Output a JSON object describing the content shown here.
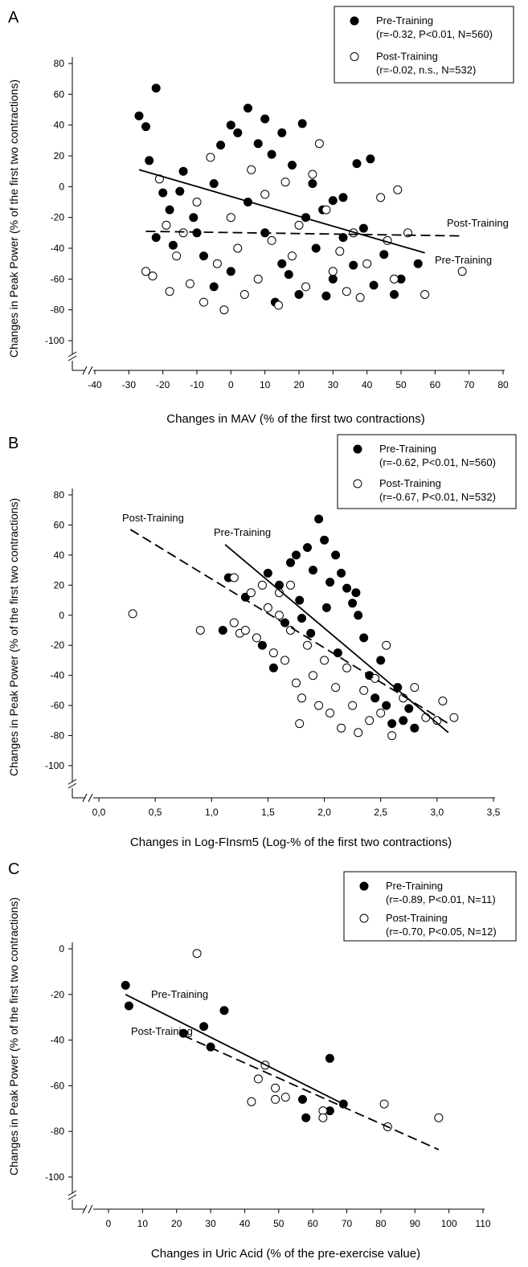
{
  "chart_data": [
    {
      "type": "scatter",
      "panel_label": "A",
      "xlabel": "Changes in MAV (% of the first two contractions)",
      "ylabel": "Changes in Peak Power (% of the first two contractions)",
      "xlim": [
        -40,
        80
      ],
      "ylim": [
        -100,
        80
      ],
      "x_ticks": [
        "-40",
        "-30",
        "-20",
        "-10",
        "0",
        "10",
        "20",
        "30",
        "40",
        "50",
        "60",
        "70",
        "80"
      ],
      "y_ticks": [
        "80",
        "60",
        "40",
        "20",
        "0",
        "-20",
        "-40",
        "-60",
        "-80",
        "-100"
      ],
      "legend_position": "top-right",
      "series": [
        {
          "name": "Pre-Training",
          "stats": "(r=-0.32, P<0.01, N=560)",
          "marker": "filled-circle",
          "n_points": 560,
          "regression": {
            "x1": -27,
            "y1": 11,
            "x2": 57,
            "y2": -43,
            "style": "solid",
            "label": "Pre-Training"
          },
          "points": [
            [
              -27,
              46
            ],
            [
              -25,
              39
            ],
            [
              -22,
              64
            ],
            [
              -24,
              17
            ],
            [
              -20,
              -4
            ],
            [
              -18,
              -15
            ],
            [
              -22,
              -33
            ],
            [
              -17,
              -38
            ],
            [
              -15,
              -3
            ],
            [
              -14,
              10
            ],
            [
              -11,
              -20
            ],
            [
              -8,
              -45
            ],
            [
              -5,
              2
            ],
            [
              -3,
              27
            ],
            [
              0,
              40
            ],
            [
              2,
              35
            ],
            [
              5,
              51
            ],
            [
              8,
              28
            ],
            [
              10,
              44
            ],
            [
              12,
              21
            ],
            [
              15,
              35
            ],
            [
              18,
              14
            ],
            [
              21,
              41
            ],
            [
              24,
              2
            ],
            [
              27,
              -15
            ],
            [
              30,
              -9
            ],
            [
              33,
              -33
            ],
            [
              36,
              -51
            ],
            [
              39,
              -27
            ],
            [
              42,
              -64
            ],
            [
              45,
              -44
            ],
            [
              48,
              -70
            ],
            [
              50,
              -60
            ],
            [
              55,
              -50
            ],
            [
              5,
              -10
            ],
            [
              10,
              -30
            ],
            [
              15,
              -50
            ],
            [
              20,
              -70
            ],
            [
              25,
              -40
            ],
            [
              30,
              -60
            ],
            [
              0,
              -55
            ],
            [
              -5,
              -65
            ],
            [
              -10,
              -30
            ],
            [
              13,
              -75
            ],
            [
              17,
              -57
            ],
            [
              22,
              -20
            ],
            [
              28,
              -71
            ],
            [
              33,
              -7
            ],
            [
              37,
              15
            ],
            [
              41,
              18
            ]
          ]
        },
        {
          "name": "Post-Training",
          "stats": "(r=-0.02, n.s., N=532)",
          "marker": "open-circle",
          "n_points": 532,
          "regression": {
            "x1": -25,
            "y1": -29,
            "x2": 68,
            "y2": -32,
            "style": "dashed",
            "label": "Post-Training"
          },
          "points": [
            [
              -25,
              -55
            ],
            [
              -23,
              -58
            ],
            [
              -21,
              5
            ],
            [
              -19,
              -25
            ],
            [
              -18,
              -68
            ],
            [
              -16,
              -45
            ],
            [
              -14,
              -30
            ],
            [
              -12,
              -63
            ],
            [
              -10,
              -10
            ],
            [
              -8,
              -75
            ],
            [
              -6,
              19
            ],
            [
              -4,
              -50
            ],
            [
              -2,
              -80
            ],
            [
              0,
              -20
            ],
            [
              2,
              -40
            ],
            [
              4,
              -70
            ],
            [
              6,
              11
            ],
            [
              8,
              -60
            ],
            [
              10,
              -5
            ],
            [
              12,
              -35
            ],
            [
              14,
              -77
            ],
            [
              16,
              3
            ],
            [
              18,
              -45
            ],
            [
              20,
              -25
            ],
            [
              22,
              -65
            ],
            [
              24,
              8
            ],
            [
              26,
              28
            ],
            [
              28,
              -15
            ],
            [
              30,
              -55
            ],
            [
              32,
              -42
            ],
            [
              34,
              -68
            ],
            [
              36,
              -30
            ],
            [
              38,
              -72
            ],
            [
              40,
              -50
            ],
            [
              44,
              -7
            ],
            [
              46,
              -35
            ],
            [
              48,
              -60
            ],
            [
              49,
              -2
            ],
            [
              52,
              -30
            ],
            [
              57,
              -70
            ],
            [
              68,
              -55
            ]
          ]
        }
      ]
    },
    {
      "type": "scatter",
      "panel_label": "B",
      "xlabel": "Changes in Log-FInsm5 (Log-% of the first two contractions)",
      "ylabel": "Changes in Peak Power (% of the first two contractions)",
      "xlim": [
        -0.25,
        3.5
      ],
      "ylim": [
        -100,
        80
      ],
      "x_ticks": [
        "0,0",
        "0,5",
        "1,0",
        "1,5",
        "2,0",
        "2,5",
        "3,0",
        "3,5"
      ],
      "x_tick_values": [
        0,
        0.5,
        1.0,
        1.5,
        2.0,
        2.5,
        3.0,
        3.5
      ],
      "y_ticks": [
        "80",
        "60",
        "40",
        "20",
        "0",
        "-20",
        "-40",
        "-60",
        "-80",
        "-100"
      ],
      "legend_position": "top-right",
      "series": [
        {
          "name": "Pre-Training",
          "stats": "(r=-0.62, P<0.01, N=560)",
          "marker": "filled-circle",
          "n_points": 560,
          "regression": {
            "x1": 1.12,
            "y1": 47,
            "x2": 3.1,
            "y2": -78,
            "style": "solid",
            "label": "Pre-Training"
          },
          "points": [
            [
              1.15,
              25
            ],
            [
              1.1,
              -10
            ],
            [
              1.3,
              12
            ],
            [
              1.45,
              -20
            ],
            [
              1.5,
              28
            ],
            [
              1.55,
              -35
            ],
            [
              1.6,
              20
            ],
            [
              1.7,
              35
            ],
            [
              1.75,
              40
            ],
            [
              1.8,
              -2
            ],
            [
              1.85,
              45
            ],
            [
              1.9,
              30
            ],
            [
              1.95,
              64
            ],
            [
              2.0,
              50
            ],
            [
              2.05,
              22
            ],
            [
              2.1,
              40
            ],
            [
              2.15,
              28
            ],
            [
              2.2,
              18
            ],
            [
              2.25,
              8
            ],
            [
              2.3,
              0
            ],
            [
              2.35,
              -15
            ],
            [
              2.4,
              -40
            ],
            [
              2.45,
              -55
            ],
            [
              2.5,
              -30
            ],
            [
              2.55,
              -60
            ],
            [
              2.6,
              -72
            ],
            [
              2.65,
              -48
            ],
            [
              2.7,
              -70
            ],
            [
              2.75,
              -62
            ],
            [
              2.8,
              -75
            ],
            [
              1.65,
              -5
            ],
            [
              1.78,
              10
            ],
            [
              1.88,
              -12
            ],
            [
              2.02,
              5
            ],
            [
              2.12,
              -25
            ],
            [
              2.28,
              15
            ]
          ]
        },
        {
          "name": "Post-Training",
          "stats": "(r=-0.67, P<0.01, N=532)",
          "marker": "open-circle",
          "n_points": 532,
          "regression": {
            "x1": 0.28,
            "y1": 57,
            "x2": 3.1,
            "y2": -72,
            "style": "dashed",
            "label": "Post-Training"
          },
          "points": [
            [
              0.3,
              1
            ],
            [
              0.9,
              -10
            ],
            [
              1.2,
              25
            ],
            [
              1.2,
              -5
            ],
            [
              1.25,
              -12
            ],
            [
              1.3,
              -10
            ],
            [
              1.35,
              15
            ],
            [
              1.4,
              -15
            ],
            [
              1.45,
              20
            ],
            [
              1.5,
              5
            ],
            [
              1.55,
              -25
            ],
            [
              1.6,
              0
            ],
            [
              1.65,
              -30
            ],
            [
              1.7,
              -10
            ],
            [
              1.75,
              -45
            ],
            [
              1.78,
              -72
            ],
            [
              1.8,
              -55
            ],
            [
              1.85,
              -20
            ],
            [
              1.9,
              -40
            ],
            [
              1.95,
              -60
            ],
            [
              2.0,
              -30
            ],
            [
              2.05,
              -65
            ],
            [
              2.1,
              -48
            ],
            [
              2.15,
              -75
            ],
            [
              2.2,
              -35
            ],
            [
              2.25,
              -60
            ],
            [
              2.3,
              -78
            ],
            [
              2.35,
              -50
            ],
            [
              2.4,
              -70
            ],
            [
              2.45,
              -42
            ],
            [
              2.5,
              -65
            ],
            [
              2.6,
              -80
            ],
            [
              2.7,
              -55
            ],
            [
              2.8,
              -48
            ],
            [
              2.9,
              -68
            ],
            [
              3.0,
              -70
            ],
            [
              3.05,
              -57
            ],
            [
              3.15,
              -68
            ],
            [
              2.55,
              -20
            ],
            [
              1.6,
              15
            ],
            [
              1.7,
              20
            ]
          ]
        }
      ]
    },
    {
      "type": "scatter",
      "panel_label": "C",
      "xlabel": "Changes in Uric Acid (% of the pre-exercise value)",
      "ylabel": "Changes in Peak Power (% of the first two contractions)",
      "xlim": [
        -10,
        110
      ],
      "ylim": [
        -100,
        20
      ],
      "x_ticks": [
        "0",
        "10",
        "20",
        "30",
        "40",
        "50",
        "60",
        "70",
        "80",
        "90",
        "100",
        "110"
      ],
      "y_ticks": [
        "0",
        "-20",
        "-40",
        "-60",
        "-80",
        "-100"
      ],
      "legend_position": "top-right",
      "series": [
        {
          "name": "Pre-Training",
          "stats": "(r=-0.89, P<0.01, N=11)",
          "marker": "filled-circle",
          "n_points": 11,
          "regression": {
            "x1": 5,
            "y1": -20,
            "x2": 69,
            "y2": -68,
            "style": "solid",
            "label": "Pre-Training"
          },
          "points": [
            [
              5,
              -16
            ],
            [
              6,
              -25
            ],
            [
              22,
              -37
            ],
            [
              28,
              -34
            ],
            [
              30,
              -43
            ],
            [
              34,
              -27
            ],
            [
              57,
              -66
            ],
            [
              58,
              -74
            ],
            [
              65,
              -48
            ],
            [
              65,
              -71
            ],
            [
              69,
              -68
            ]
          ]
        },
        {
          "name": "Post-Training",
          "stats": "(r=-0.70, P<0.05, N=12)",
          "marker": "open-circle",
          "n_points": 12,
          "regression": {
            "x1": 22,
            "y1": -38,
            "x2": 97,
            "y2": -88,
            "style": "dashed",
            "label": "Post-Training"
          },
          "points": [
            [
              26,
              -2
            ],
            [
              42,
              -67
            ],
            [
              44,
              -57
            ],
            [
              46,
              -51
            ],
            [
              49,
              -61
            ],
            [
              49,
              -66
            ],
            [
              52,
              -65
            ],
            [
              63,
              -71
            ],
            [
              63,
              -74
            ],
            [
              81,
              -68
            ],
            [
              82,
              -78
            ],
            [
              97,
              -74
            ]
          ]
        }
      ]
    }
  ]
}
